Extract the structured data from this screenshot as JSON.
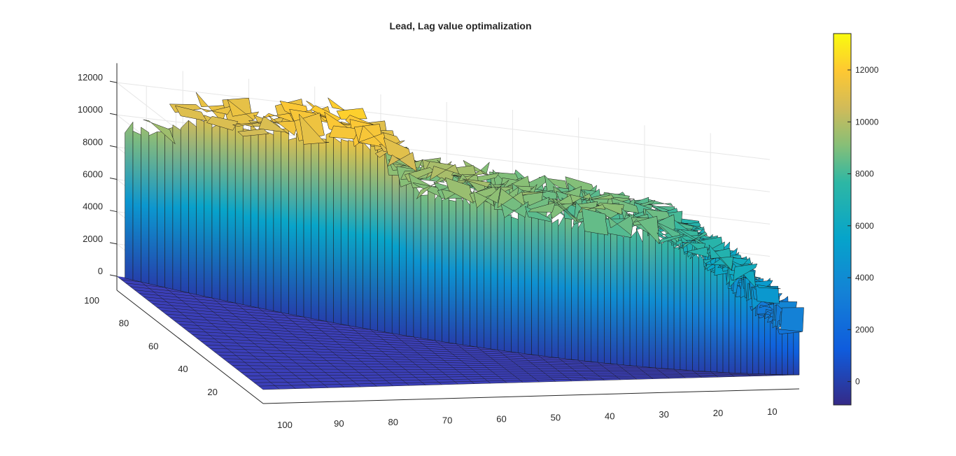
{
  "chart_data": {
    "type": "surface",
    "title": "Lead, Lag value optimalization",
    "xlabel": "",
    "ylabel": "",
    "zlabel": "",
    "z_ticks": [
      "0",
      "2000",
      "4000",
      "6000",
      "8000",
      "10000",
      "12000"
    ],
    "lead_ticks": [
      "100",
      "90",
      "80",
      "70",
      "60",
      "50",
      "40",
      "30",
      "20",
      "10"
    ],
    "lag_ticks": [
      "100",
      "80",
      "60",
      "40",
      "20"
    ],
    "colorbar_ticks": [
      "0",
      "2000",
      "4000",
      "6000",
      "8000",
      "10000",
      "12000"
    ],
    "z_range": [
      -900,
      13400
    ],
    "lead_range": [
      1,
      100
    ],
    "lag_range": [
      1,
      100
    ],
    "colormap": "parula",
    "grid": true,
    "colorbar": "right",
    "surface_rule": "z is near 0 where lag < lead; where lag >= lead z rises to a ridge of roughly 9000-13000",
    "ridge_profile": {
      "lead": [
        100,
        95,
        90,
        85,
        80,
        75,
        70,
        65,
        60,
        55,
        50,
        45,
        40,
        35,
        30,
        25,
        20,
        15,
        10,
        5
      ],
      "value": [
        9500,
        9300,
        10800,
        11000,
        11100,
        11300,
        11600,
        11200,
        9000,
        9200,
        8800,
        8700,
        8600,
        8400,
        8300,
        8000,
        7600,
        6400,
        5200,
        3000
      ]
    }
  }
}
